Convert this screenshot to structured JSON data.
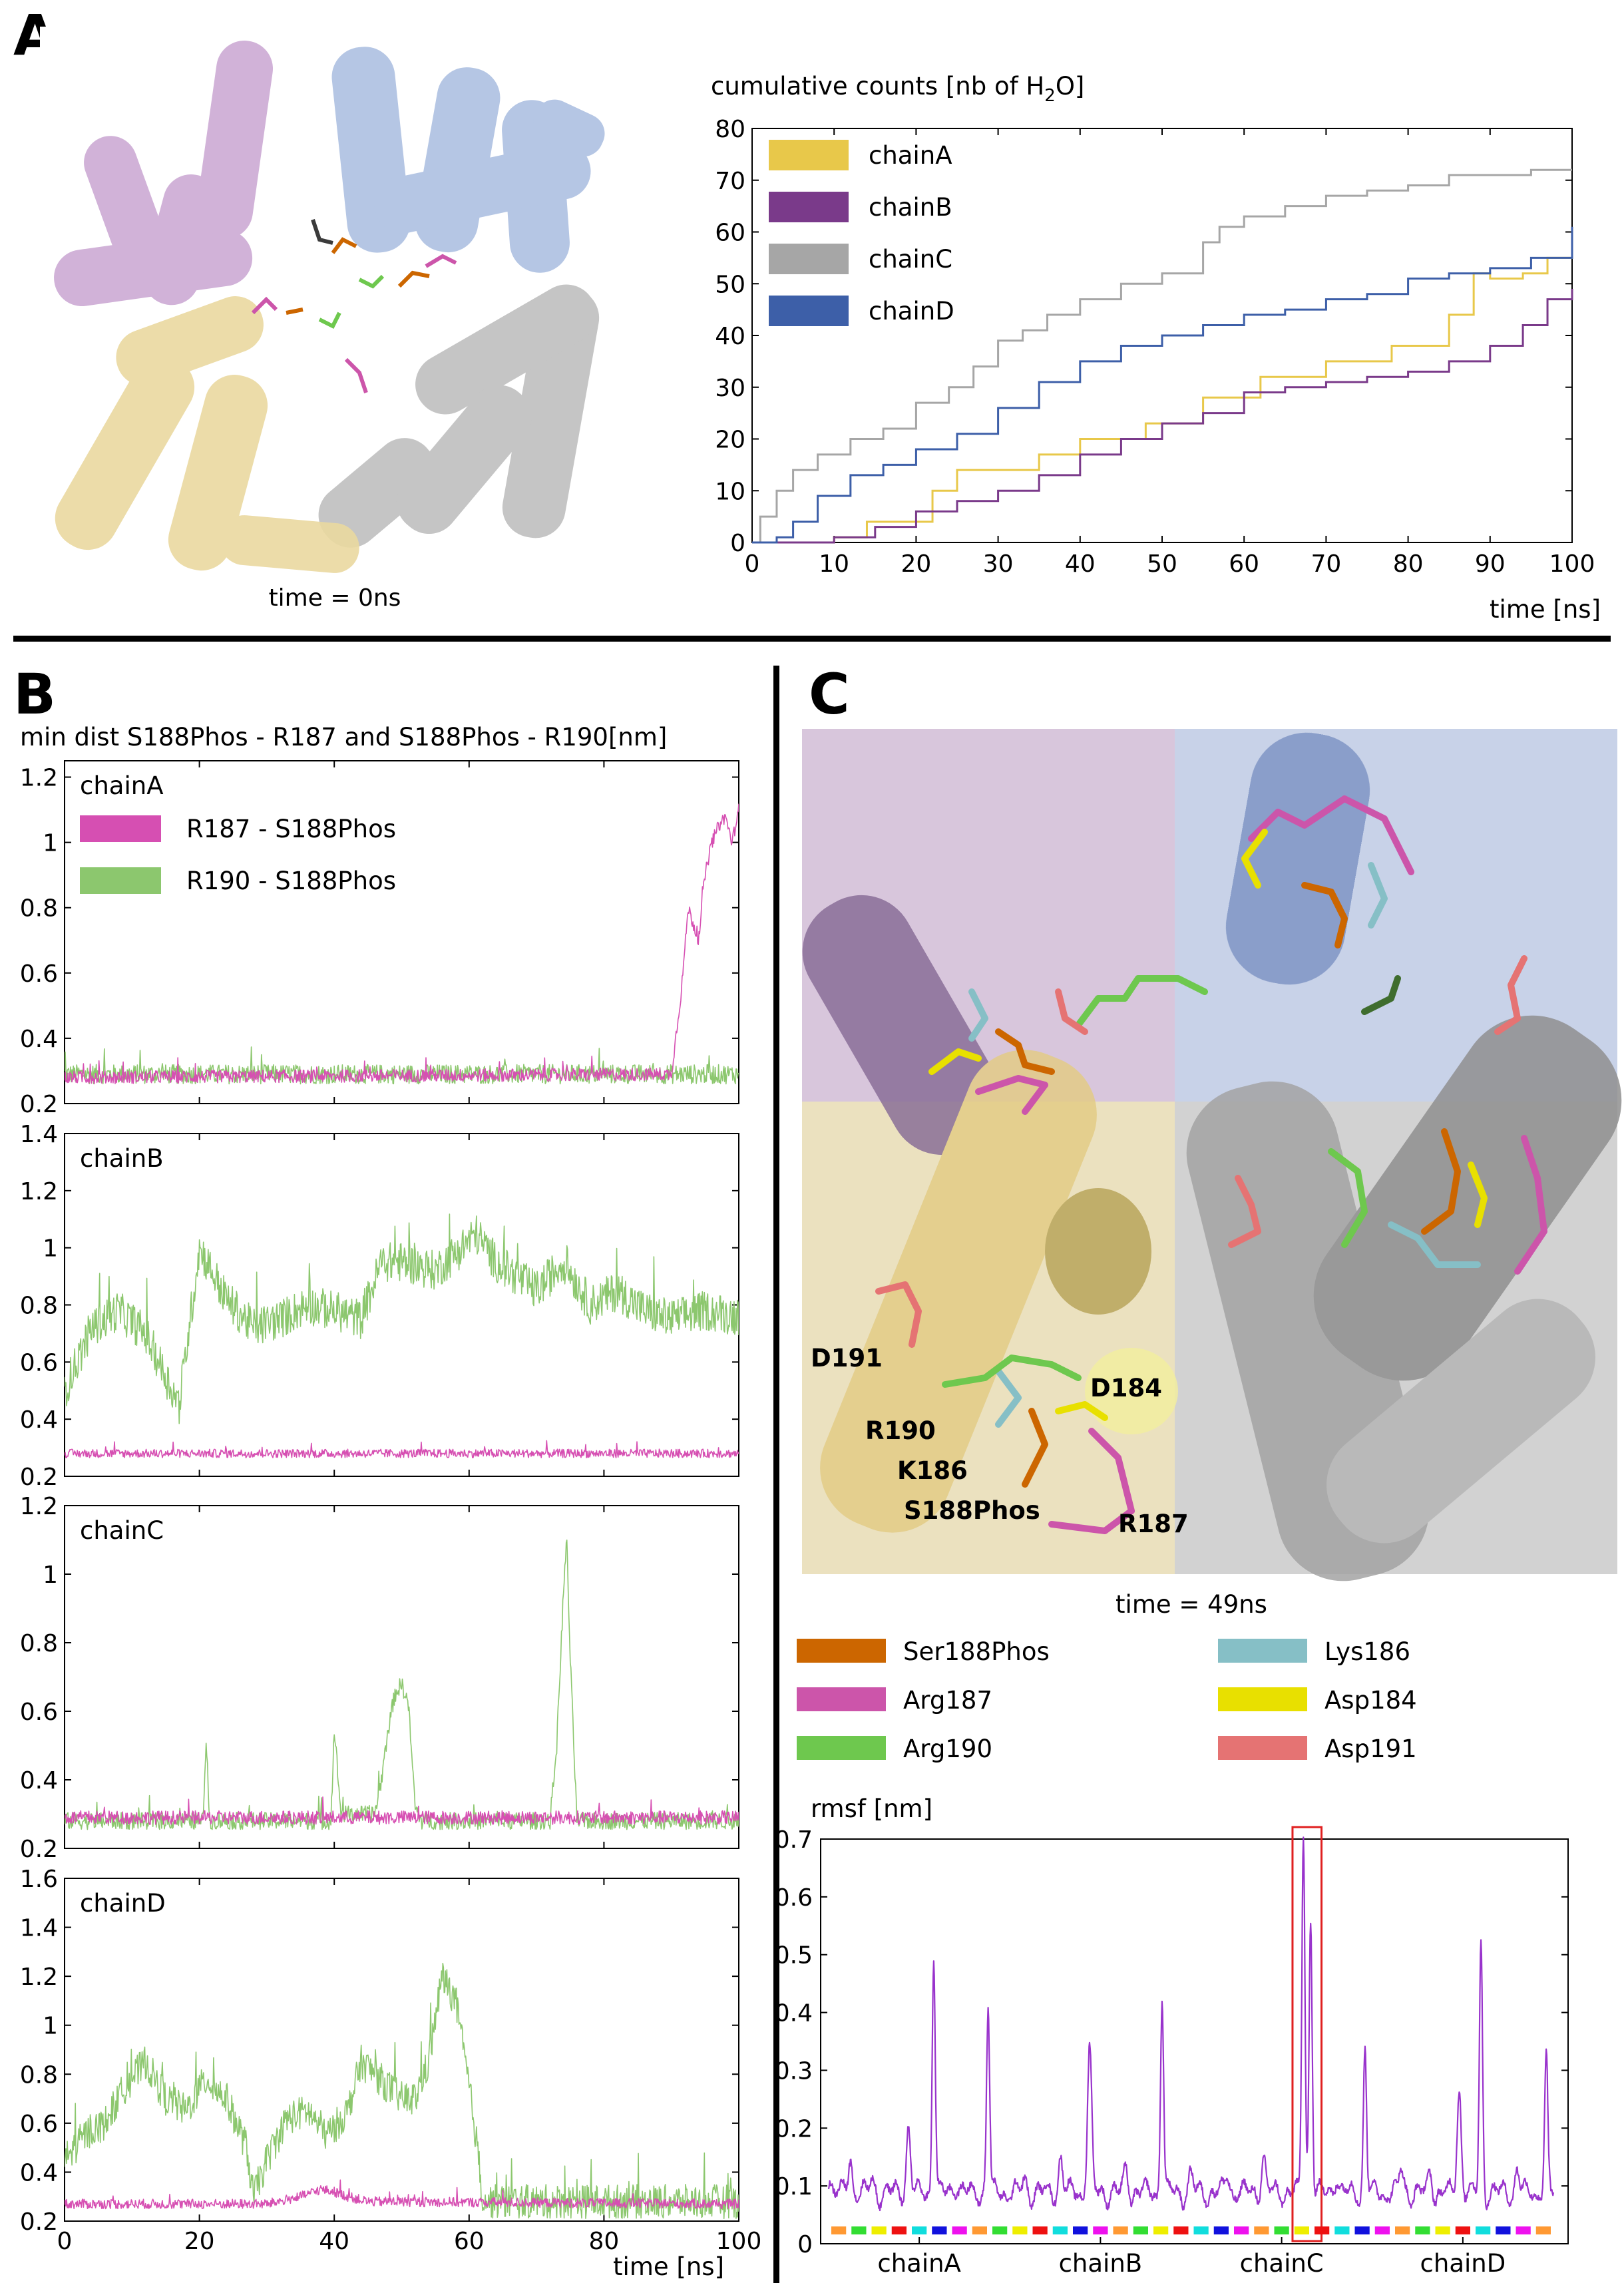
{
  "panels": {
    "a": "A",
    "b": "B",
    "c": "C"
  },
  "panelA": {
    "caption": "time = 0ns",
    "icon": "protein-tetramer-cartoon",
    "colors": {
      "chainA": "#c9a5d2",
      "chainB": "#a9bde0",
      "chainC": "#bfbfbf",
      "chainD": "#ead9a0"
    }
  },
  "panelC": {
    "caption": "time = 49ns",
    "icon": "active-site-close-up",
    "residue_labels": [
      "D191",
      "D184",
      "R190",
      "K186",
      "S188Phos",
      "R187"
    ],
    "legend": [
      {
        "name": "Ser188Phos",
        "color": "#cc6600"
      },
      {
        "name": "Lys186",
        "color": "#86bfc6"
      },
      {
        "name": "Arg187",
        "color": "#cc55aa"
      },
      {
        "name": "Asp184",
        "color": "#e8e000"
      },
      {
        "name": "Arg190",
        "color": "#6ec84e"
      },
      {
        "name": "Asp191",
        "color": "#e57373"
      }
    ]
  },
  "chart_data": [
    {
      "id": "water-counts",
      "type": "line",
      "title": "cumulative counts [nb of H2O]",
      "title_parts": [
        "cumulative counts [nb of H",
        "2",
        "O]"
      ],
      "xlabel": "time [ns]",
      "ylabel": "",
      "xlim": [
        0,
        100
      ],
      "ylim": [
        0,
        80
      ],
      "xticks": [
        "0",
        "10",
        "20",
        "30",
        "40",
        "50",
        "60",
        "70",
        "80",
        "90",
        "100"
      ],
      "yticks": [
        "0",
        "10",
        "20",
        "30",
        "40",
        "50",
        "60",
        "70",
        "80"
      ],
      "legend_position": "top-left",
      "series": [
        {
          "name": "chainA",
          "color": "#e8c84a",
          "x": [
            0,
            10,
            14,
            22,
            25,
            35,
            40,
            48,
            55,
            62,
            70,
            78,
            85,
            88,
            90,
            94,
            97,
            100
          ],
          "y": [
            0,
            1,
            4,
            10,
            14,
            17,
            20,
            23,
            28,
            32,
            35,
            38,
            44,
            52,
            51,
            52,
            55,
            57
          ]
        },
        {
          "name": "chainB",
          "color": "#7a3a8a",
          "x": [
            0,
            5,
            10,
            15,
            20,
            25,
            30,
            35,
            40,
            45,
            50,
            55,
            60,
            65,
            70,
            75,
            80,
            85,
            90,
            94,
            97,
            100
          ],
          "y": [
            0,
            0,
            1,
            3,
            6,
            8,
            10,
            13,
            17,
            20,
            23,
            25,
            29,
            30,
            31,
            32,
            33,
            35,
            38,
            42,
            47,
            49
          ]
        },
        {
          "name": "chainC",
          "color": "#a6a6a6",
          "x": [
            0,
            1,
            3,
            5,
            8,
            12,
            16,
            20,
            24,
            27,
            30,
            33,
            36,
            40,
            45,
            50,
            55,
            57,
            60,
            65,
            70,
            75,
            80,
            85,
            90,
            95,
            100
          ],
          "y": [
            0,
            5,
            10,
            14,
            17,
            20,
            22,
            27,
            30,
            34,
            39,
            41,
            44,
            47,
            50,
            52,
            58,
            61,
            63,
            65,
            67,
            68,
            69,
            71,
            71,
            72,
            72
          ]
        },
        {
          "name": "chainD",
          "color": "#3d5fa8",
          "x": [
            0,
            3,
            5,
            8,
            12,
            16,
            20,
            25,
            30,
            35,
            40,
            45,
            50,
            55,
            60,
            65,
            70,
            75,
            80,
            85,
            90,
            95,
            100
          ],
          "y": [
            0,
            1,
            4,
            9,
            13,
            15,
            18,
            21,
            26,
            31,
            35,
            38,
            40,
            42,
            44,
            45,
            47,
            48,
            51,
            52,
            53,
            55,
            61
          ]
        }
      ]
    },
    {
      "id": "min-dist",
      "type": "line",
      "title": "min dist S188Phos - R187 and S188Phos - R190[nm]",
      "xlabel": "time [ns]",
      "xlim": [
        0,
        100
      ],
      "xticks": [
        "0",
        "20",
        "40",
        "60",
        "80",
        "100"
      ],
      "legend_position": "top-left",
      "legend": [
        {
          "name": "R187 - S188Phos",
          "color": "#d64fb2"
        },
        {
          "name": "R190 - S188Phos",
          "color": "#8cc76e"
        }
      ],
      "subplots": [
        {
          "label": "chainA",
          "ylim": [
            0.2,
            1.25
          ],
          "yticks": [
            "0.2",
            "0.4",
            "0.6",
            "0.8",
            "1",
            "1.2"
          ],
          "r187": {
            "x": [
              0,
              90,
              91.5,
              92.5,
              94,
              95,
              96,
              97,
              98,
              99,
              100
            ],
            "y": [
              0.28,
              0.29,
              0.55,
              0.8,
              0.7,
              0.9,
              1.0,
              1.05,
              1.08,
              1.0,
              1.1
            ],
            "noise": 0.02
          },
          "r190": {
            "x": [
              0,
              50,
              100
            ],
            "y": [
              0.29,
              0.29,
              0.29
            ],
            "noise": 0.03
          }
        },
        {
          "label": "chainB",
          "ylim": [
            0.2,
            1.4
          ],
          "yticks": [
            "0.2",
            "0.4",
            "0.6",
            "0.8",
            "1",
            "1.2",
            "1.4"
          ],
          "r187": {
            "x": [
              0,
              100
            ],
            "y": [
              0.28,
              0.28
            ],
            "noise": 0.015
          },
          "r190": {
            "x": [
              0,
              4,
              8,
              12,
              15,
              17,
              20,
              24,
              28,
              32,
              36,
              40,
              44,
              47,
              50,
              55,
              58,
              61,
              64,
              67,
              70,
              74,
              78,
              82,
              86,
              90,
              95,
              100
            ],
            "y": [
              0.5,
              0.72,
              0.78,
              0.7,
              0.55,
              0.45,
              1.0,
              0.82,
              0.72,
              0.75,
              0.8,
              0.78,
              0.75,
              0.95,
              0.95,
              0.92,
              0.98,
              1.05,
              0.95,
              0.9,
              0.85,
              0.95,
              0.8,
              0.85,
              0.78,
              0.75,
              0.78,
              0.76
            ],
            "noise": 0.07
          }
        },
        {
          "label": "chainC",
          "ylim": [
            0.2,
            1.2
          ],
          "yticks": [
            "0.2",
            "0.4",
            "0.6",
            "0.8",
            "1",
            "1.2"
          ],
          "r187": {
            "x": [
              0,
              100
            ],
            "y": [
              0.29,
              0.29
            ],
            "noise": 0.02
          },
          "r190": {
            "x": [
              0,
              20.5,
              21,
              21.5,
              39.5,
              40,
              41,
              46,
              47,
              48,
              49,
              50,
              51,
              52,
              53,
              72,
              73,
              74,
              74.5,
              75,
              76,
              100
            ],
            "y": [
              0.28,
              0.28,
              0.52,
              0.28,
              0.28,
              0.55,
              0.3,
              0.3,
              0.4,
              0.55,
              0.65,
              0.68,
              0.62,
              0.32,
              0.28,
              0.28,
              0.5,
              0.95,
              1.1,
              0.75,
              0.28,
              0.28
            ],
            "noise": 0.025
          }
        },
        {
          "label": "chainD",
          "ylim": [
            0.2,
            1.6
          ],
          "yticks": [
            "0.2",
            "0.4",
            "0.6",
            "0.8",
            "1",
            "1.2",
            "1.4",
            "1.6"
          ],
          "r187": {
            "x": [
              0,
              30,
              35,
              38,
              40,
              42,
              45,
              100
            ],
            "y": [
              0.27,
              0.27,
              0.3,
              0.33,
              0.32,
              0.3,
              0.28,
              0.27
            ],
            "noise": 0.02
          },
          "r190": {
            "x": [
              0,
              3,
              6,
              9,
              12,
              15,
              18,
              21,
              24,
              27,
              28,
              30,
              33,
              36,
              39,
              42,
              44,
              46,
              48,
              50,
              52,
              54,
              56,
              58,
              60,
              61,
              62,
              63,
              100
            ],
            "y": [
              0.45,
              0.55,
              0.6,
              0.75,
              0.85,
              0.7,
              0.65,
              0.78,
              0.7,
              0.5,
              0.3,
              0.45,
              0.62,
              0.65,
              0.55,
              0.65,
              0.85,
              0.8,
              0.75,
              0.7,
              0.7,
              0.85,
              1.2,
              1.1,
              0.75,
              0.55,
              0.3,
              0.28,
              0.28
            ],
            "noise": 0.07
          }
        }
      ]
    },
    {
      "id": "rmsf",
      "type": "line",
      "title": "rmsf [nm]",
      "xlabel": "",
      "ylim": [
        0,
        0.7
      ],
      "yticks": [
        "0",
        "0.1",
        "0.2",
        "0.3",
        "0.4",
        "0.5",
        "0.6",
        "0.7"
      ],
      "xtick_labels": [
        "chainA",
        "chainB",
        "chainC",
        "chainD"
      ],
      "color": "#9933cc",
      "highlight": {
        "from": 0.64,
        "to": 0.68,
        "color": "#e02020"
      },
      "baseline": 0.07,
      "peaks": [
        {
          "x": 0.0,
          "y": 0.1,
          "w": 0.004
        },
        {
          "x": 0.03,
          "y": 0.13,
          "w": 0.004
        },
        {
          "x": 0.06,
          "y": 0.09,
          "w": 0.004
        },
        {
          "x": 0.11,
          "y": 0.18,
          "w": 0.004
        },
        {
          "x": 0.145,
          "y": 0.48,
          "w": 0.003
        },
        {
          "x": 0.175,
          "y": 0.09,
          "w": 0.004
        },
        {
          "x": 0.22,
          "y": 0.39,
          "w": 0.003
        },
        {
          "x": 0.27,
          "y": 0.09,
          "w": 0.004
        },
        {
          "x": 0.32,
          "y": 0.13,
          "w": 0.004
        },
        {
          "x": 0.36,
          "y": 0.32,
          "w": 0.004
        },
        {
          "x": 0.41,
          "y": 0.11,
          "w": 0.004
        },
        {
          "x": 0.46,
          "y": 0.41,
          "w": 0.003
        },
        {
          "x": 0.5,
          "y": 0.1,
          "w": 0.004
        },
        {
          "x": 0.55,
          "y": 0.1,
          "w": 0.004
        },
        {
          "x": 0.6,
          "y": 0.13,
          "w": 0.004
        },
        {
          "x": 0.655,
          "y": 0.69,
          "w": 0.003
        },
        {
          "x": 0.665,
          "y": 0.55,
          "w": 0.003
        },
        {
          "x": 0.7,
          "y": 0.1,
          "w": 0.004
        },
        {
          "x": 0.74,
          "y": 0.32,
          "w": 0.003
        },
        {
          "x": 0.79,
          "y": 0.11,
          "w": 0.004
        },
        {
          "x": 0.83,
          "y": 0.1,
          "w": 0.004
        },
        {
          "x": 0.87,
          "y": 0.25,
          "w": 0.004
        },
        {
          "x": 0.9,
          "y": 0.5,
          "w": 0.003
        },
        {
          "x": 0.95,
          "y": 0.11,
          "w": 0.004
        },
        {
          "x": 0.99,
          "y": 0.3,
          "w": 0.003
        }
      ],
      "segment_colors": [
        "#ff9933",
        "#33dd33",
        "#eeee00",
        "#ee1111",
        "#11dddd",
        "#1111dd",
        "#ee11ee"
      ]
    }
  ]
}
